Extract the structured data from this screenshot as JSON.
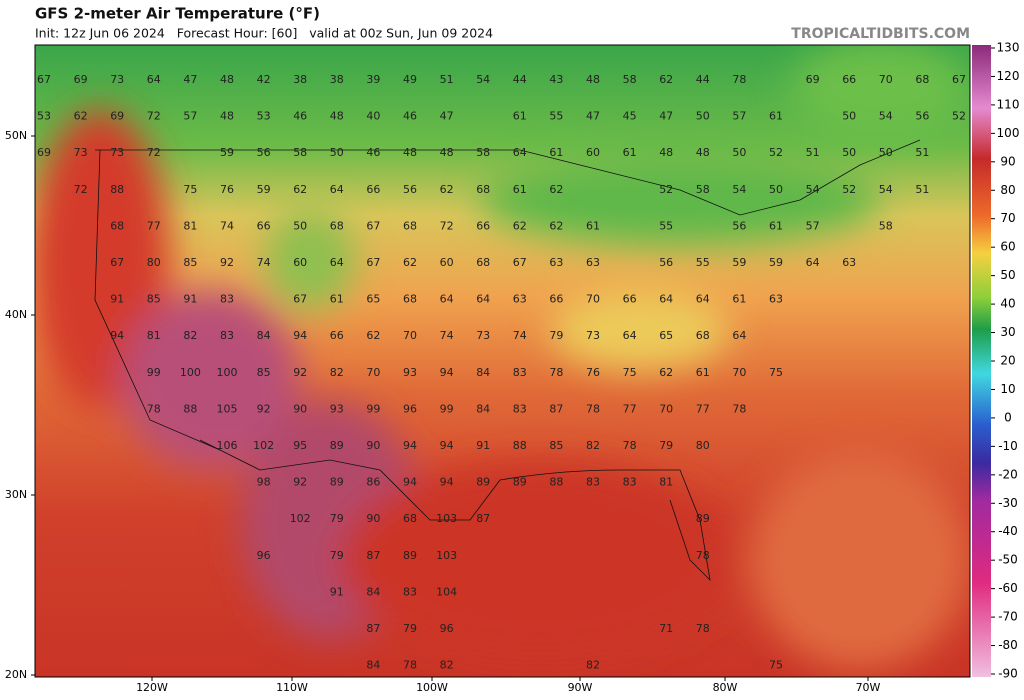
{
  "header": {
    "title": "GFS 2-meter Air Temperature (°F)",
    "subtitle": "Init: 12z Jun 06 2024   Forecast Hour: [60]   valid at 00z Sun, Jun 09 2024",
    "site": "TROPICALTIDBITS.COM"
  },
  "latitudes": [
    "50N",
    "40N",
    "30N",
    "20N"
  ],
  "longitudes": [
    "120W",
    "110W",
    "100W",
    "90W",
    "80W",
    "70W"
  ],
  "colorbar": {
    "ticks": [
      130,
      120,
      110,
      100,
      90,
      80,
      70,
      60,
      50,
      40,
      30,
      20,
      10,
      0,
      -10,
      -20,
      -30,
      -40,
      -50,
      -60,
      -70,
      -80,
      -90
    ]
  },
  "temps": {
    "rows": [
      [
        67,
        69,
        73,
        64,
        47,
        48,
        42,
        38,
        38,
        39,
        49,
        51,
        54,
        44,
        43,
        48,
        58,
        62,
        44,
        78,
        null,
        69,
        66,
        70,
        68,
        67
      ],
      [
        53,
        62,
        69,
        72,
        57,
        48,
        53,
        46,
        48,
        40,
        46,
        47,
        null,
        61,
        55,
        47,
        45,
        47,
        50,
        57,
        61,
        null,
        50,
        54,
        56,
        52
      ],
      [
        69,
        73,
        73,
        72,
        null,
        59,
        56,
        58,
        50,
        46,
        48,
        48,
        58,
        64,
        61,
        60,
        61,
        48,
        48,
        50,
        52,
        51,
        50,
        50,
        51,
        null
      ],
      [
        null,
        72,
        88,
        null,
        75,
        76,
        59,
        62,
        64,
        66,
        56,
        62,
        68,
        61,
        62,
        null,
        null,
        52,
        58,
        54,
        50,
        54,
        52,
        54,
        51,
        null
      ],
      [
        null,
        null,
        68,
        77,
        81,
        74,
        66,
        50,
        68,
        67,
        68,
        72,
        66,
        62,
        62,
        61,
        null,
        55,
        null,
        56,
        61,
        57,
        null,
        58,
        null,
        null
      ],
      [
        null,
        null,
        67,
        80,
        85,
        92,
        74,
        60,
        64,
        67,
        62,
        60,
        68,
        67,
        63,
        63,
        null,
        56,
        55,
        59,
        59,
        64,
        63,
        null,
        null,
        null
      ],
      [
        null,
        null,
        91,
        85,
        91,
        83,
        null,
        67,
        61,
        65,
        68,
        64,
        64,
        63,
        66,
        70,
        66,
        64,
        64,
        61,
        63,
        null,
        null,
        null,
        null,
        null
      ],
      [
        null,
        null,
        94,
        81,
        82,
        83,
        84,
        94,
        66,
        62,
        70,
        74,
        73,
        74,
        79,
        73,
        64,
        65,
        68,
        64,
        null,
        null,
        null,
        null,
        null,
        null
      ],
      [
        null,
        null,
        null,
        99,
        100,
        100,
        85,
        92,
        82,
        70,
        93,
        94,
        84,
        83,
        78,
        76,
        75,
        62,
        61,
        70,
        75,
        null,
        null,
        null,
        null,
        null
      ],
      [
        null,
        null,
        null,
        78,
        88,
        105,
        92,
        90,
        93,
        99,
        96,
        99,
        84,
        83,
        87,
        78,
        77,
        70,
        77,
        78,
        null,
        null,
        null,
        null,
        null,
        null
      ],
      [
        null,
        null,
        null,
        null,
        null,
        106,
        102,
        95,
        89,
        90,
        94,
        94,
        91,
        88,
        85,
        82,
        78,
        79,
        80,
        null,
        null,
        null,
        null,
        null,
        null,
        null
      ],
      [
        null,
        null,
        null,
        null,
        null,
        null,
        98,
        92,
        89,
        86,
        94,
        94,
        89,
        89,
        88,
        83,
        83,
        81,
        null,
        null,
        null,
        null,
        null,
        null,
        null,
        null
      ],
      [
        null,
        null,
        null,
        null,
        null,
        null,
        null,
        102,
        79,
        90,
        68,
        103,
        87,
        null,
        null,
        null,
        null,
        null,
        89,
        null,
        null,
        null,
        null,
        null,
        null,
        null
      ],
      [
        null,
        null,
        null,
        null,
        null,
        null,
        96,
        null,
        79,
        87,
        89,
        103,
        null,
        null,
        null,
        null,
        null,
        null,
        78,
        null,
        null,
        null,
        null,
        null,
        null,
        null
      ],
      [
        null,
        null,
        null,
        null,
        null,
        null,
        null,
        null,
        91,
        84,
        83,
        104,
        null,
        null,
        null,
        null,
        null,
        null,
        null,
        null,
        null,
        null,
        null,
        null,
        null,
        null
      ],
      [
        null,
        null,
        null,
        null,
        null,
        null,
        null,
        null,
        null,
        87,
        79,
        96,
        null,
        null,
        null,
        null,
        null,
        71,
        78,
        null,
        null,
        null,
        null,
        null,
        null,
        null
      ],
      [
        null,
        null,
        null,
        null,
        null,
        null,
        null,
        null,
        null,
        84,
        78,
        82,
        null,
        null,
        null,
        82,
        null,
        null,
        null,
        null,
        75,
        null,
        null,
        null,
        null,
        null
      ]
    ]
  }
}
